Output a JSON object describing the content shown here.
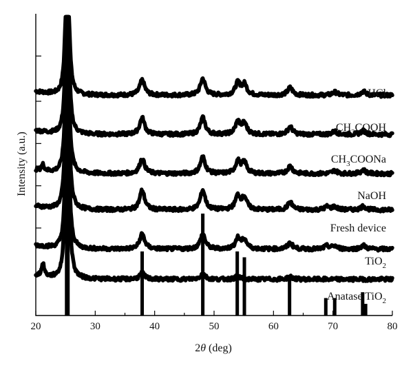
{
  "chart_data": {
    "type": "line",
    "xlabel_prefix": "2",
    "xlabel_symbol": "θ",
    "xlabel_suffix": " (deg)",
    "ylabel": "Intensity (a.u.)",
    "xlim": [
      20,
      80
    ],
    "xticks": [
      20,
      30,
      40,
      50,
      60,
      70,
      80
    ],
    "series": [
      {
        "name": "HCl",
        "label": [
          {
            "t": "HCl"
          }
        ],
        "baseline": 0.73,
        "peaks": [
          [
            25.3,
            0.64
          ],
          [
            37.9,
            0.05
          ],
          [
            48.1,
            0.055
          ],
          [
            54.0,
            0.04
          ],
          [
            55.1,
            0.035
          ],
          [
            62.8,
            0.025
          ],
          [
            70.3,
            0.01
          ],
          [
            75.1,
            0.012
          ]
        ]
      },
      {
        "name": "CH3COOH",
        "label": [
          {
            "t": "CH"
          },
          {
            "t": "3",
            "sub": true
          },
          {
            "t": "COOH"
          }
        ],
        "baseline": 0.6,
        "peaks": [
          [
            25.3,
            0.66
          ],
          [
            37.9,
            0.055
          ],
          [
            48.1,
            0.055
          ],
          [
            54.0,
            0.04
          ],
          [
            55.1,
            0.035
          ],
          [
            62.8,
            0.025
          ],
          [
            70.3,
            0.01
          ],
          [
            75.1,
            0.012
          ]
        ]
      },
      {
        "name": "CH3COONa",
        "label": [
          {
            "t": "CH"
          },
          {
            "t": "3",
            "sub": true
          },
          {
            "t": "COONa"
          }
        ],
        "baseline": 0.47,
        "peaks": [
          [
            21.2,
            0.02
          ],
          [
            25.3,
            0.68
          ],
          [
            37.9,
            0.05
          ],
          [
            48.1,
            0.055
          ],
          [
            54.0,
            0.04
          ],
          [
            55.1,
            0.035
          ],
          [
            62.8,
            0.025
          ],
          [
            70.3,
            0.01
          ],
          [
            75.1,
            0.012
          ]
        ]
      },
      {
        "name": "NaOH",
        "label": [
          {
            "t": "NaOH"
          }
        ],
        "baseline": 0.35,
        "peaks": [
          [
            25.3,
            0.74
          ],
          [
            37.9,
            0.065
          ],
          [
            48.1,
            0.065
          ],
          [
            54.0,
            0.045
          ],
          [
            55.1,
            0.04
          ],
          [
            62.8,
            0.025
          ],
          [
            69.0,
            0.01
          ],
          [
            70.3,
            0.01
          ],
          [
            75.1,
            0.012
          ]
        ]
      },
      {
        "name": "Fresh device",
        "label": [
          {
            "t": "Fresh device"
          }
        ],
        "baseline": 0.22,
        "peaks": [
          [
            25.3,
            0.7
          ],
          [
            37.9,
            0.05
          ],
          [
            48.1,
            0.05
          ],
          [
            54.0,
            0.035
          ],
          [
            55.1,
            0.03
          ],
          [
            62.8,
            0.02
          ],
          [
            69.0,
            0.01
          ],
          [
            70.3,
            0.01
          ],
          [
            75.1,
            0.012
          ]
        ]
      },
      {
        "name": "TiO2",
        "label": [
          {
            "t": "TiO"
          },
          {
            "t": "2",
            "sub": true
          }
        ],
        "baseline": 0.12,
        "peaks": [
          [
            21.2,
            0.04
          ],
          [
            25.3,
            0.83
          ],
          [
            37.9,
            0.02
          ],
          [
            48.1,
            0.018
          ],
          [
            54.0,
            0.01
          ],
          [
            62.8,
            0.008
          ]
        ]
      }
    ],
    "reference": {
      "name": "Anatase TiO2",
      "label": [
        {
          "t": "Anatase TiO"
        },
        {
          "t": "2",
          "sub": true
        }
      ],
      "lines": [
        [
          25.3,
          1.0
        ],
        [
          37.9,
          0.22
        ],
        [
          48.1,
          0.35
        ],
        [
          53.9,
          0.22
        ],
        [
          55.1,
          0.2
        ],
        [
          62.7,
          0.14
        ],
        [
          68.8,
          0.06
        ],
        [
          70.3,
          0.06
        ],
        [
          75.0,
          0.08
        ],
        [
          75.5,
          0.04
        ]
      ]
    }
  }
}
